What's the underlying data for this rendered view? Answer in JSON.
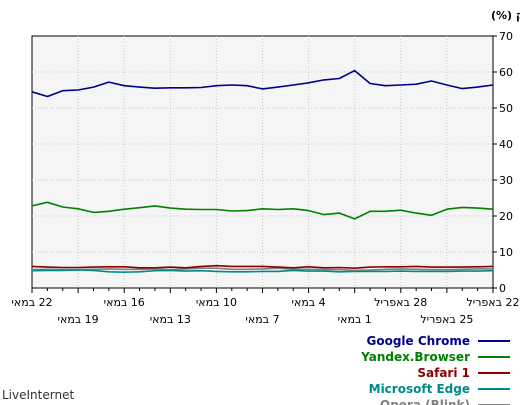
{
  "chart_data": {
    "type": "line",
    "ylabel": "חלק (%)",
    "ylim": [
      0,
      70
    ],
    "yticks": [
      0,
      10,
      20,
      30,
      40,
      50,
      60,
      70
    ],
    "grid": true,
    "legend_position": "bottom-right",
    "x_labels_top": [
      "22 במאי",
      "16 במאי",
      "10 במאי",
      "4 במאי",
      "28 באפריל",
      "22 באפריל"
    ],
    "x_labels_bottom": [
      "19 במאי",
      "13 במאי",
      "7 במאי",
      "1 במאי",
      "25 באפריל"
    ],
    "x": [
      "22 במאי",
      "21 במאי",
      "20 במאי",
      "19 במאי",
      "18 במאי",
      "17 במאי",
      "16 במאי",
      "15 במאי",
      "14 במאי",
      "13 במאי",
      "12 במאי",
      "11 במאי",
      "10 במאי",
      "9 במאי",
      "8 במאי",
      "7 במאי",
      "6 במאי",
      "5 במאי",
      "4 במאי",
      "3 במאי",
      "2 במאי",
      "1 במאי",
      "30 באפריל",
      "29 באפריל",
      "28 באפריל",
      "27 באפריל",
      "26 באפריל",
      "25 באפריל",
      "24 באפריל",
      "23 באפריל",
      "22 באפריל"
    ],
    "series": [
      {
        "name": "Google Chrome",
        "color": "#00008b",
        "values": [
          54.5,
          53.2,
          54.8,
          55.0,
          55.8,
          57.2,
          56.2,
          55.8,
          55.5,
          55.6,
          55.6,
          55.7,
          56.2,
          56.4,
          56.2,
          55.3,
          55.8,
          56.4,
          57.0,
          57.8,
          58.2,
          60.4,
          56.8,
          56.2,
          56.4,
          56.6,
          57.5,
          56.4,
          55.4,
          55.8,
          56.4
        ]
      },
      {
        "name": "Yandex.Browser",
        "color": "#008000",
        "values": [
          22.8,
          23.8,
          22.5,
          22.0,
          21.0,
          21.3,
          21.9,
          22.3,
          22.8,
          22.2,
          21.9,
          21.8,
          21.8,
          21.4,
          21.5,
          22.0,
          21.8,
          22.0,
          21.5,
          20.4,
          20.8,
          19.2,
          21.3,
          21.3,
          21.6,
          20.8,
          20.2,
          21.9,
          22.4,
          22.2,
          21.9
        ]
      },
      {
        "name": "Safari 1",
        "color": "#8b0000",
        "values": [
          6.0,
          5.8,
          5.7,
          5.7,
          5.8,
          5.9,
          5.9,
          5.6,
          5.6,
          5.8,
          5.6,
          6.0,
          6.2,
          6.0,
          6.0,
          6.0,
          5.8,
          5.6,
          5.9,
          5.6,
          5.7,
          5.5,
          5.8,
          5.9,
          5.9,
          6.0,
          5.8,
          5.8,
          5.8,
          5.9,
          6.0
        ]
      },
      {
        "name": "Microsoft Edge",
        "color": "#008b8b",
        "values": [
          4.8,
          4.9,
          4.9,
          5.0,
          4.9,
          4.5,
          4.4,
          4.5,
          4.8,
          4.9,
          4.7,
          4.8,
          4.6,
          4.5,
          4.5,
          4.6,
          4.6,
          4.9,
          4.7,
          4.7,
          4.5,
          4.6,
          4.6,
          4.6,
          4.7,
          4.6,
          4.6,
          4.6,
          4.7,
          4.7,
          4.8
        ]
      },
      {
        "name": "Opera (Blink)",
        "color": "#808080",
        "values": [
          5.1,
          5.2,
          5.1,
          5.1,
          5.2,
          5.3,
          5.2,
          5.2,
          5.3,
          5.1,
          5.3,
          5.5,
          5.5,
          5.2,
          5.2,
          5.3,
          5.5,
          5.2,
          5.2,
          5.1,
          5.1,
          4.9,
          5.0,
          5.2,
          5.3,
          5.2,
          5.1,
          5.1,
          5.2,
          5.3,
          5.3
        ]
      }
    ]
  },
  "branding": {
    "text": "LiveInternet"
  }
}
